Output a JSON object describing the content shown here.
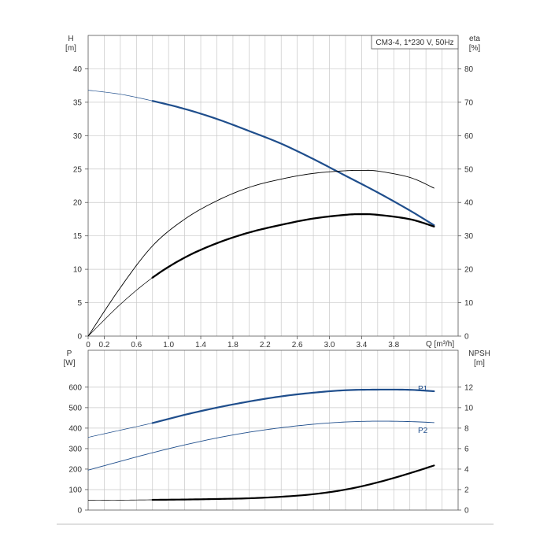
{
  "chart_data": [
    {
      "type": "line",
      "title": "CM3-4, 1*230 V, 50Hz",
      "xlabel": "Q [m³/h]",
      "xlim": [
        0,
        4.6
      ],
      "x_ticks": [
        0,
        0.2,
        0.6,
        1.0,
        1.4,
        1.8,
        2.2,
        2.6,
        3.0,
        3.4,
        3.8
      ],
      "x_tick_labels": [
        "0",
        "0.2",
        "0.6",
        "1.0",
        "1.4",
        "1.8",
        "2.2",
        "2.6",
        "3.0",
        "3.4",
        "3.8"
      ],
      "y_left": {
        "label_line1": "H",
        "label_line2": "[m]",
        "lim": [
          0,
          45
        ],
        "ticks": [
          0,
          5,
          10,
          15,
          20,
          25,
          30,
          35,
          40
        ],
        "tick_labels": [
          "0",
          "5",
          "10",
          "15",
          "20",
          "25",
          "30",
          "35",
          "40"
        ]
      },
      "y_right": {
        "label_line1": "eta",
        "label_line2": "[%]",
        "lim": [
          0,
          90
        ],
        "ticks": [
          0,
          10,
          20,
          30,
          40,
          50,
          60,
          70,
          80
        ],
        "tick_labels": [
          "0",
          "10",
          "20",
          "30",
          "40",
          "50",
          "60",
          "70",
          "80"
        ]
      },
      "grid": true,
      "series": [
        {
          "axis": "left",
          "color": "#1f4e8c",
          "width": 2.2,
          "thin_color": "#1f4e8c",
          "thin_width": 0.7,
          "range_start": 0.8,
          "x": [
            0,
            0.4,
            0.8,
            1.2,
            1.6,
            2.0,
            2.4,
            2.8,
            3.2,
            3.6,
            4.0,
            4.3
          ],
          "y": [
            36.8,
            36.2,
            35.2,
            34.0,
            32.5,
            30.7,
            28.8,
            26.5,
            24.0,
            21.5,
            18.8,
            16.6
          ]
        },
        {
          "axis": "right",
          "color": "#000000",
          "width": 0.9,
          "thin_color": "#000000",
          "thin_width": 0.7,
          "range_start": 0.0,
          "x": [
            0,
            0.4,
            0.8,
            1.2,
            1.6,
            2.0,
            2.4,
            2.8,
            3.2,
            3.4,
            3.6,
            4.0,
            4.3
          ],
          "y": [
            0,
            14.5,
            27,
            35,
            40.5,
            44.5,
            47.0,
            48.7,
            49.5,
            49.6,
            49.4,
            47.5,
            44.3
          ]
        },
        {
          "axis": "right",
          "color": "#000000",
          "width": 2.3,
          "thin_color": "#000000",
          "thin_width": 0.7,
          "range_start": 0.8,
          "x": [
            0,
            0.4,
            0.8,
            1.2,
            1.6,
            2.0,
            2.4,
            2.8,
            3.2,
            3.4,
            3.6,
            4.0,
            4.3
          ],
          "y": [
            0,
            9.5,
            17.5,
            23.5,
            27.8,
            31.0,
            33.3,
            35.2,
            36.3,
            36.5,
            36.3,
            35.0,
            32.8
          ]
        }
      ]
    },
    {
      "type": "line",
      "xlim": [
        0,
        4.6
      ],
      "y_left": {
        "label_line1": "P",
        "label_line2": "[W]",
        "lim": [
          0,
          780
        ],
        "ticks": [
          0,
          100,
          200,
          300,
          400,
          500,
          600
        ],
        "tick_labels": [
          "0",
          "100",
          "200",
          "300",
          "400",
          "500",
          "600"
        ]
      },
      "y_right": {
        "label_line1": "NPSH",
        "label_line2": "[m]",
        "lim": [
          0,
          15.6
        ],
        "ticks": [
          0,
          2,
          4,
          6,
          8,
          10,
          12
        ],
        "tick_labels": [
          "0",
          "2",
          "4",
          "6",
          "8",
          "10",
          "12"
        ]
      },
      "grid": true,
      "series": [
        {
          "name": "P1",
          "axis": "left",
          "color": "#1f4e8c",
          "width": 2.2,
          "thin_color": "#1f4e8c",
          "thin_width": 0.7,
          "range_start": 0.8,
          "x": [
            0,
            0.4,
            0.8,
            1.2,
            1.6,
            2.0,
            2.4,
            2.8,
            3.2,
            3.6,
            4.0,
            4.3
          ],
          "y": [
            355,
            390,
            425,
            465,
            500,
            530,
            555,
            573,
            585,
            588,
            587,
            580
          ]
        },
        {
          "name": "P2",
          "axis": "left",
          "color": "#1f4e8c",
          "width": 0.9,
          "thin_color": "#1f4e8c",
          "thin_width": 0.7,
          "range_start": 0.0,
          "x": [
            0,
            0.4,
            0.8,
            1.2,
            1.6,
            2.0,
            2.4,
            2.8,
            3.2,
            3.6,
            4.0,
            4.3
          ],
          "y": [
            195,
            238,
            280,
            318,
            352,
            380,
            402,
            419,
            430,
            434,
            432,
            427
          ]
        },
        {
          "axis": "right",
          "color": "#000000",
          "width": 2.2,
          "thin_color": "#000000",
          "thin_width": 0.7,
          "range_start": 0.8,
          "x": [
            0,
            0.4,
            0.8,
            1.2,
            1.6,
            2.0,
            2.4,
            2.8,
            3.2,
            3.6,
            4.0,
            4.3
          ],
          "y": [
            0.95,
            0.97,
            1.0,
            1.03,
            1.08,
            1.15,
            1.3,
            1.55,
            2.0,
            2.7,
            3.6,
            4.35
          ]
        }
      ]
    }
  ]
}
